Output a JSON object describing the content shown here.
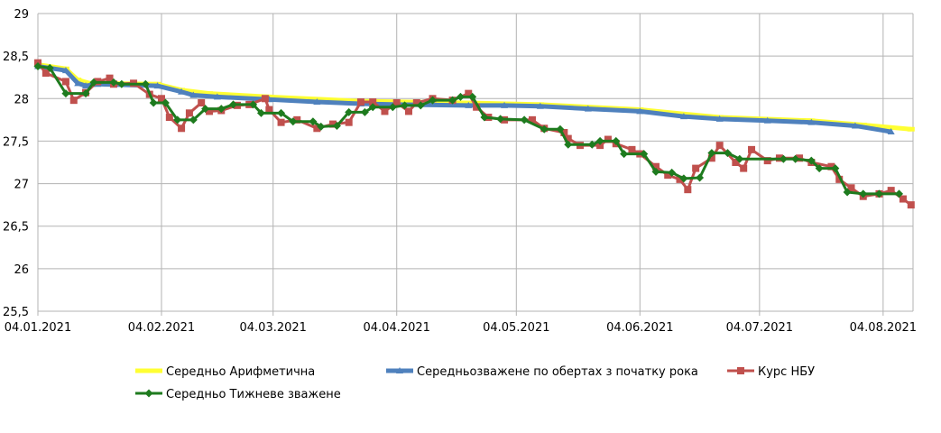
{
  "chart_data": {
    "type": "line",
    "title": "",
    "xlabel": "",
    "ylabel": "",
    "x_unit": "days since 04.01.2021",
    "xlim": [
      0,
      219.5
    ],
    "ylim": [
      25.5,
      29
    ],
    "y_ticks": [
      25.5,
      26,
      26.5,
      27,
      27.5,
      28,
      28.5,
      29
    ],
    "y_tick_labels": [
      "25,5",
      "26",
      "26,5",
      "27",
      "27,5",
      "28",
      "28,5",
      "29"
    ],
    "x_ticks": [
      0,
      31,
      59,
      90,
      120,
      151,
      181,
      212
    ],
    "x_tick_labels": [
      "04.01.2021",
      "04.02.2021",
      "04.03.2021",
      "04.04.2021",
      "04.05.2021",
      "04.06.2021",
      "04.07.2021",
      "04.08.2021"
    ],
    "grid": true,
    "legend_position": "bottom",
    "series": [
      {
        "name": "Середньо Арифметична",
        "color": "#ffff33",
        "marker": "dash",
        "x": [
          0,
          7,
          10,
          13,
          30,
          36,
          43,
          58,
          81,
          108,
          126,
          151,
          171,
          194,
          207,
          219
        ],
        "y": [
          28.4,
          28.35,
          28.22,
          28.18,
          28.17,
          28.1,
          28.06,
          28.02,
          27.97,
          27.95,
          27.93,
          27.87,
          27.78,
          27.74,
          27.69,
          27.64
        ]
      },
      {
        "name": "Середньозважене по обертах з початку рока",
        "color": "#4f81bd",
        "marker": "triangle",
        "x": [
          0,
          7,
          10,
          12,
          15,
          30,
          36,
          39,
          45,
          58,
          70,
          81,
          90,
          108,
          117,
          126,
          138,
          151,
          162,
          171,
          183,
          194,
          205,
          214
        ],
        "y": [
          28.38,
          28.33,
          28.18,
          28.15,
          28.17,
          28.15,
          28.08,
          28.04,
          28.02,
          27.99,
          27.96,
          27.94,
          27.93,
          27.92,
          27.92,
          27.91,
          27.88,
          27.85,
          27.79,
          27.76,
          27.74,
          27.72,
          27.68,
          27.61
        ]
      },
      {
        "name": "Курс НБУ",
        "color": "#c0504d",
        "marker": "square",
        "x": [
          0,
          2,
          7,
          9,
          12,
          15,
          18,
          19,
          24,
          28,
          31,
          33,
          36,
          38,
          41,
          43,
          46,
          50,
          53,
          57,
          58,
          61,
          65,
          70,
          74,
          78,
          81,
          84,
          87,
          90,
          93,
          95,
          99,
          104,
          108,
          110,
          113,
          117,
          124,
          127,
          132,
          133,
          136,
          141,
          143,
          145,
          149,
          151,
          155,
          158,
          161,
          163,
          165,
          169,
          171,
          175,
          177,
          179,
          183,
          186,
          191,
          194,
          199,
          201,
          204,
          207,
          211,
          214,
          217,
          219
        ],
        "y": [
          28.42,
          28.3,
          28.2,
          27.98,
          28.07,
          28.2,
          28.24,
          28.17,
          28.18,
          28.05,
          28.0,
          27.78,
          27.65,
          27.83,
          27.95,
          27.85,
          27.86,
          27.92,
          27.93,
          28.0,
          27.87,
          27.72,
          27.75,
          27.65,
          27.7,
          27.72,
          27.96,
          27.96,
          27.85,
          27.95,
          27.85,
          27.95,
          28.0,
          27.98,
          28.06,
          27.9,
          27.78,
          27.75,
          27.75,
          27.65,
          27.6,
          27.53,
          27.45,
          27.45,
          27.52,
          27.47,
          27.4,
          27.35,
          27.2,
          27.1,
          27.05,
          26.93,
          27.18,
          27.3,
          27.45,
          27.25,
          27.18,
          27.4,
          27.27,
          27.3,
          27.3,
          27.25,
          27.2,
          27.05,
          26.95,
          26.85,
          26.88,
          26.92,
          26.82,
          26.75
        ]
      },
      {
        "name": "Середньо Тижневе зважене",
        "color": "#1e7b1e",
        "marker": "diamond",
        "x": [
          0,
          3,
          7,
          12,
          14,
          19,
          21,
          27,
          29,
          32,
          35,
          39,
          42,
          46,
          49,
          54,
          56,
          61,
          64,
          69,
          71,
          75,
          78,
          82,
          84,
          89,
          92,
          96,
          99,
          104,
          106,
          109,
          112,
          116,
          122,
          127,
          131,
          133,
          139,
          141,
          145,
          147,
          152,
          155,
          159,
          162,
          166,
          169,
          173,
          176,
          187,
          190,
          194,
          196,
          200,
          203,
          207,
          211,
          216
        ],
        "y": [
          28.38,
          28.36,
          28.06,
          28.06,
          28.19,
          28.19,
          28.17,
          28.17,
          27.95,
          27.95,
          27.75,
          27.75,
          27.88,
          27.88,
          27.93,
          27.93,
          27.83,
          27.83,
          27.73,
          27.73,
          27.67,
          27.68,
          27.84,
          27.84,
          27.9,
          27.9,
          27.92,
          27.92,
          27.98,
          27.98,
          28.02,
          28.02,
          27.78,
          27.76,
          27.75,
          27.64,
          27.64,
          27.46,
          27.46,
          27.5,
          27.5,
          27.35,
          27.35,
          27.14,
          27.13,
          27.06,
          27.07,
          27.36,
          27.36,
          27.29,
          27.29,
          27.29,
          27.27,
          27.18,
          27.18,
          26.9,
          26.88,
          26.88,
          26.88
        ]
      }
    ]
  }
}
